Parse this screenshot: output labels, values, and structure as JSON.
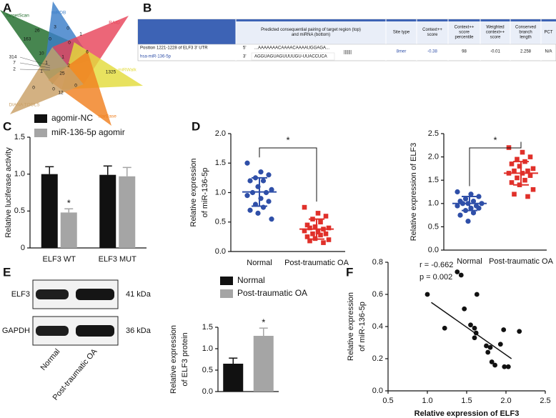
{
  "panel_labels": [
    "A",
    "B",
    "C",
    "D",
    "E",
    "F"
  ],
  "venn": {
    "sets": [
      {
        "name": "TargetScan",
        "color": "#1f6b2a"
      },
      {
        "name": "miRDB",
        "color": "#3a7ec8"
      },
      {
        "name": "RAID",
        "color": "#e8445a"
      },
      {
        "name": "miRWalk",
        "color": "#e3dc3c"
      },
      {
        "name": "starBase",
        "color": "#f08020"
      },
      {
        "name": "DIANA TOOLS",
        "color": "#c9a066"
      }
    ],
    "counts": [
      26,
      3,
      0,
      1,
      163,
      0,
      0,
      6,
      10,
      1,
      2,
      314,
      7,
      2,
      1,
      25,
      1325,
      0,
      0,
      12,
      0,
      1
    ]
  },
  "table": {
    "header": [
      [
        "Predicted consequential pairing of target region (top)",
        "and miRNA (bottom)"
      ],
      [
        "Site type"
      ],
      [
        "Context++",
        "score"
      ],
      [
        "Context++",
        "score",
        "percentile"
      ],
      [
        "Weighted",
        "context++",
        "score"
      ],
      [
        "Conserved",
        "branch",
        "length"
      ],
      [
        "PCT"
      ]
    ],
    "row_label": "Position 1221-1228 of ELF3 3' UTR",
    "mirna": "hsa-miR-136-5p",
    "target": [
      "5'",
      "...AAAAAAACAAAACAAAAUGGAGA..."
    ],
    "mirna_seq": [
      "3'",
      "AGGUAGUAGUUUUGU-UUACCUCA"
    ],
    "pairing": "|||||||",
    "values": [
      "8mer",
      -0.38,
      98,
      -0.01,
      2.258,
      "N/A"
    ]
  },
  "blot": {
    "bands": [
      "ELF3",
      "GAPDH"
    ],
    "sizes": [
      "41 kDa",
      "36 kDa"
    ],
    "lanes": [
      "Normal",
      "Post-traumatic OA"
    ]
  },
  "chart_data": [
    {
      "type": "bar",
      "ylabel": "Relative luciferase activity",
      "categories": [
        "ELF3 WT",
        "ELF3 MUT"
      ],
      "series": [
        {
          "name": "agomir-NC",
          "color": "#111111",
          "values": [
            1.0,
            0.99
          ],
          "errors": [
            0.1,
            0.12
          ]
        },
        {
          "name": "miR-136-5p agomir",
          "color": "#a5a5a5",
          "values": [
            0.48,
            0.97
          ],
          "errors": [
            0.05,
            0.12
          ]
        }
      ],
      "ylim": [
        0,
        1.5
      ],
      "yticks": [
        0,
        0.5,
        {
          "value": 1,
          "label": "1.0"
        },
        1.5
      ],
      "annotations": [
        "*"
      ]
    },
    {
      "type": "strip",
      "ylabel": [
        "Relative expression",
        "of miR-136-5p"
      ],
      "categories": [
        "Normal",
        "Post-traumatic OA"
      ],
      "groups": [
        {
          "color": "#2f4fa8",
          "marker": "circle",
          "values": [
            1.5,
            1.35,
            1.3,
            1.25,
            1.2,
            1.2,
            1.1,
            1.05,
            1.0,
            1.0,
            0.95,
            0.9,
            0.85,
            0.8,
            0.75,
            0.7,
            0.65,
            0.55
          ],
          "mean": 1.01,
          "sd": 0.24
        },
        {
          "color": "#e0302a",
          "marker": "square",
          "values": [
            0.75,
            0.65,
            0.6,
            0.55,
            0.5,
            0.45,
            0.42,
            0.4,
            0.4,
            0.38,
            0.35,
            0.33,
            0.3,
            0.3,
            0.28,
            0.25,
            0.22,
            0.2,
            0.18,
            0.15
          ],
          "mean": 0.38,
          "sd": 0.17
        }
      ],
      "ylim": [
        0,
        2
      ],
      "yticks": [
        {
          "value": 0,
          "label": "0.0"
        },
        0.5,
        {
          "value": 1,
          "label": "1.0"
        },
        1.5,
        {
          "value": 2,
          "label": "2.0"
        }
      ],
      "annotations": [
        "*"
      ]
    },
    {
      "type": "strip",
      "ylabel": [
        "Relative expression of ELF3"
      ],
      "categories": [
        "Normal",
        "Post-traumatic OA"
      ],
      "groups": [
        {
          "color": "#2f4fa8",
          "marker": "circle",
          "values": [
            1.25,
            1.2,
            1.15,
            1.1,
            1.05,
            1.05,
            1.0,
            1.0,
            1.0,
            0.95,
            0.95,
            0.9,
            0.9,
            0.85,
            0.8,
            0.75,
            0.62
          ],
          "mean": 1.0,
          "sd": 0.15
        },
        {
          "color": "#e0302a",
          "marker": "square",
          "values": [
            2.2,
            2.1,
            2.0,
            1.95,
            1.9,
            1.85,
            1.8,
            1.75,
            1.7,
            1.7,
            1.65,
            1.65,
            1.6,
            1.55,
            1.5,
            1.45,
            1.4,
            1.3,
            1.2,
            1.15
          ],
          "mean": 1.65,
          "sd": 0.25
        }
      ],
      "ylim": [
        0,
        2.5
      ],
      "yticks": [
        {
          "value": 0,
          "label": "0.0"
        },
        0.5,
        {
          "value": 1,
          "label": "1.0"
        },
        1.5,
        {
          "value": 2,
          "label": "2.0"
        },
        2.5
      ],
      "annotations": [
        "*"
      ]
    },
    {
      "type": "bar",
      "ylabel": [
        "Relative expression",
        "of ELF3 protein"
      ],
      "series": [
        {
          "name": "Normal",
          "color": "#111111",
          "values": [
            0.65
          ],
          "errors": [
            0.13
          ]
        },
        {
          "name": "Post-traumatic OA",
          "color": "#a5a5a5",
          "values": [
            1.3
          ],
          "errors": [
            0.18
          ]
        }
      ],
      "ylim": [
        0,
        1.5
      ],
      "yticks": [
        {
          "value": 0,
          "label": "0.0"
        },
        0.5,
        {
          "value": 1,
          "label": "1.0"
        },
        1.5
      ],
      "annotations": [
        "*"
      ]
    },
    {
      "type": "scatter",
      "xlabel": "Relative expression of ELF3",
      "ylabel": [
        "Relative expression",
        "of miR-136-5p"
      ],
      "x": [
        1.0,
        1.38,
        1.43,
        1.22,
        1.47,
        1.55,
        1.6,
        1.62,
        1.63,
        1.6,
        1.75,
        1.77,
        1.8,
        1.82,
        1.86,
        1.93,
        1.97,
        1.98,
        2.03,
        2.17
      ],
      "y": [
        0.6,
        0.74,
        0.72,
        0.39,
        0.51,
        0.41,
        0.39,
        0.36,
        0.6,
        0.33,
        0.28,
        0.24,
        0.27,
        0.18,
        0.16,
        0.29,
        0.38,
        0.15,
        0.15,
        0.37
      ],
      "fit": {
        "x": [
          1.05,
          2.07
        ],
        "y": [
          0.55,
          0.2
        ]
      },
      "xlim": [
        0.5,
        2.5
      ],
      "xticks": [
        0.5,
        {
          "value": 1,
          "label": "1.0"
        },
        1.5,
        {
          "value": 2,
          "label": "2.0"
        },
        2.5
      ],
      "ylim": [
        0,
        0.8
      ],
      "yticks": [
        {
          "value": 0,
          "label": "0.0"
        },
        0.2,
        0.4,
        0.6,
        0.8
      ],
      "annotations": [
        "r = -0.662",
        "p = 0.002"
      ]
    }
  ]
}
